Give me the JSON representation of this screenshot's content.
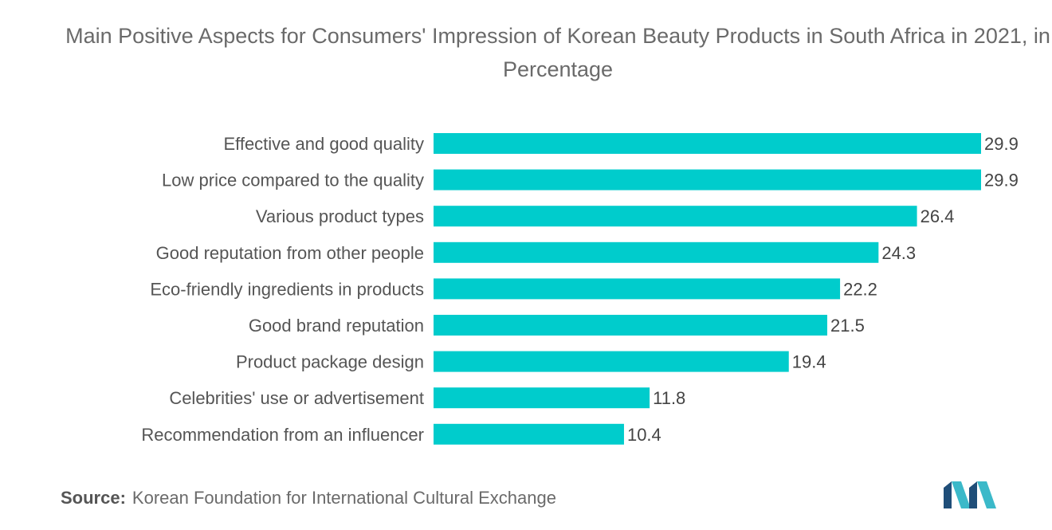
{
  "title": "Main Positive Aspects for Consumers' Impression of Korean Beauty Products in South Africa in 2021, in Percentage",
  "source": {
    "label": "Source:",
    "text": "Korean Foundation for International Cultural Exchange"
  },
  "logo_icon": "mordor-intelligence-logo",
  "colors": {
    "bar": "#00cccc",
    "logo_dark": "#1f4e79",
    "logo_light": "#3bb9c9"
  },
  "chart_data": {
    "type": "bar",
    "orientation": "horizontal",
    "title": "Main Positive Aspects for Consumers' Impression of Korean Beauty Products in South Africa in 2021, in Percentage",
    "categories": [
      "Effective and good quality",
      "Low price compared to the quality",
      "Various product types",
      "Good reputation from other people",
      "Eco-friendly ingredients in products",
      "Good brand reputation",
      "Product package design",
      "Celebrities' use or advertisement",
      "Recommendation from an influencer"
    ],
    "values": [
      29.9,
      29.9,
      26.4,
      24.3,
      22.2,
      21.5,
      19.4,
      11.8,
      10.4
    ],
    "xlim": [
      0,
      29.9
    ],
    "grid": false,
    "legend": "none",
    "data_labels": true
  }
}
